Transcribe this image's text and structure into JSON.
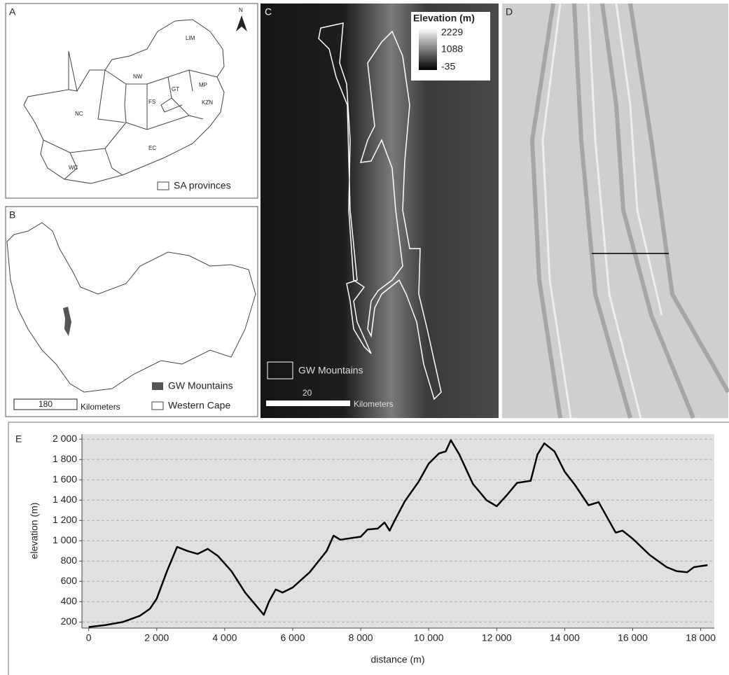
{
  "panels": {
    "a": {
      "label": "A",
      "north": "N",
      "provinces": [
        "LIM",
        "NW",
        "GT",
        "MP",
        "NC",
        "FS",
        "KZN",
        "EC",
        "WC"
      ],
      "legend": "SA provinces"
    },
    "b": {
      "label": "B",
      "legend": [
        "GW Mountains",
        "Western Cape"
      ],
      "scale_value": "180",
      "scale_unit": "Kilometers"
    },
    "c": {
      "label": "C",
      "legend_title": "Elevation (m)",
      "legend_values": [
        2229,
        1088,
        -35
      ],
      "outline_legend": "GW Mountains",
      "scale_value": "20",
      "scale_unit": "Kilometers"
    },
    "d": {
      "label": "D"
    }
  },
  "chart_data": {
    "type": "line",
    "label": "E",
    "x_label": "distance (m)",
    "y_label": "elevation (m)",
    "color": "#000000",
    "x": [
      0,
      500,
      1000,
      1500,
      1800,
      2000,
      2300,
      2600,
      2900,
      3200,
      3500,
      3800,
      4200,
      4600,
      5000,
      5150,
      5300,
      5500,
      5700,
      6000,
      6500,
      7000,
      7200,
      7400,
      8000,
      8200,
      8500,
      8700,
      8850,
      9000,
      9300,
      9700,
      10000,
      10300,
      10500,
      10650,
      10900,
      11300,
      11700,
      12000,
      12300,
      12600,
      13000,
      13200,
      13400,
      13700,
      14000,
      14300,
      14700,
      15000,
      15300,
      15500,
      15700,
      16000,
      16500,
      17000,
      17300,
      17600,
      17800,
      18000,
      18200
    ],
    "values": [
      150,
      170,
      200,
      260,
      330,
      430,
      700,
      940,
      900,
      870,
      920,
      850,
      700,
      490,
      330,
      270,
      400,
      520,
      490,
      540,
      690,
      900,
      1050,
      1010,
      1040,
      1110,
      1120,
      1180,
      1100,
      1200,
      1390,
      1580,
      1760,
      1860,
      1880,
      1990,
      1850,
      1560,
      1400,
      1340,
      1450,
      1570,
      1590,
      1850,
      1960,
      1880,
      1680,
      1550,
      1350,
      1380,
      1200,
      1080,
      1100,
      1020,
      860,
      740,
      700,
      690,
      740,
      750,
      760
    ],
    "xlim": [
      -200,
      18400
    ],
    "ylim": [
      140,
      2050
    ],
    "xticks": [
      0,
      {
        "value": 2000,
        "label": "2 000"
      },
      {
        "value": 4000,
        "label": "4 000"
      },
      {
        "value": 6000,
        "label": "6 000"
      },
      {
        "value": 8000,
        "label": "8 000"
      },
      {
        "value": 10000,
        "label": "10 000"
      },
      {
        "value": 12000,
        "label": "12 000"
      },
      {
        "value": 14000,
        "label": "14 000"
      },
      {
        "value": 16000,
        "label": "16 000"
      },
      {
        "value": 18000,
        "label": "18 000"
      }
    ],
    "yticks": [
      200,
      400,
      600,
      800,
      {
        "value": 1000,
        "label": "1 000"
      },
      {
        "value": 1200,
        "label": "1 200"
      },
      {
        "value": 1400,
        "label": "1 400"
      },
      {
        "value": 1600,
        "label": "1 600"
      },
      {
        "value": 1800,
        "label": "1 800"
      },
      {
        "value": 2000,
        "label": "2 000"
      }
    ],
    "grid": true
  }
}
